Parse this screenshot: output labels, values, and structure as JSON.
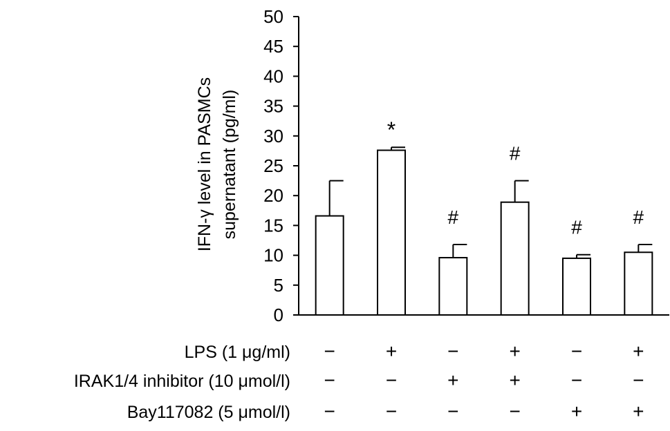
{
  "chart_data": {
    "type": "bar",
    "ylabel_lines": [
      "IFN-γ level in PASMCs",
      "supernatant (pg/ml)"
    ],
    "ylim": [
      0,
      50
    ],
    "yticks": [
      0,
      5,
      10,
      15,
      20,
      25,
      30,
      35,
      40,
      45,
      50
    ],
    "grid": false,
    "categories": [
      "group1",
      "group2",
      "group3",
      "group4",
      "group5",
      "group6"
    ],
    "values": [
      16.6,
      27.6,
      9.6,
      18.9,
      9.5,
      10.5
    ],
    "errors": [
      5.9,
      0.5,
      2.2,
      3.6,
      0.6,
      1.3
    ],
    "annotations": [
      "",
      "*",
      "#",
      "#",
      "#",
      "#"
    ],
    "conditions": [
      {
        "label": "LPS (1 μg/ml)",
        "signs": [
          "−",
          "+",
          "−",
          "+",
          "−",
          "+"
        ]
      },
      {
        "label": "IRAK1/4 inhibitor (10 μmol/l)",
        "signs": [
          "−",
          "−",
          "+",
          "+",
          "−",
          "−"
        ]
      },
      {
        "label": "Bay117082 (5 μmol/l)",
        "signs": [
          "−",
          "−",
          "−",
          "−",
          "+",
          "+"
        ]
      }
    ]
  }
}
